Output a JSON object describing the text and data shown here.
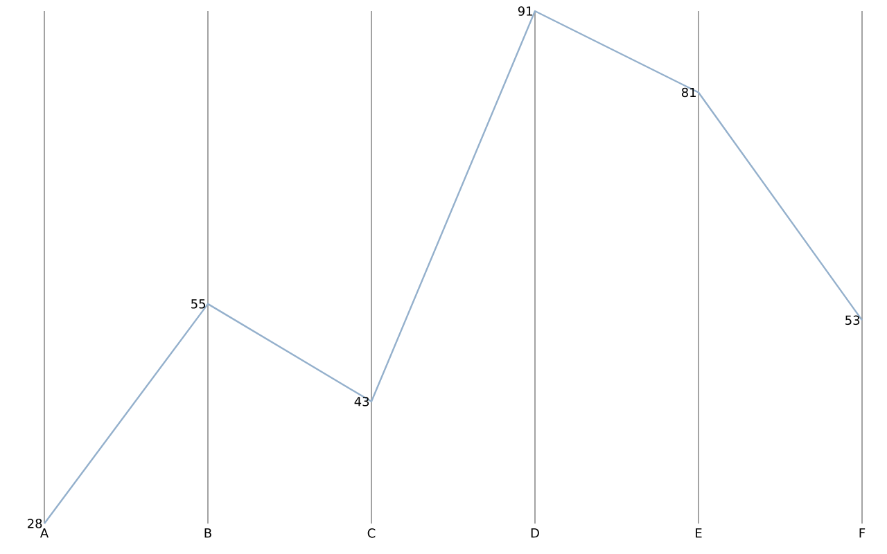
{
  "chart_data": {
    "type": "line",
    "categories": [
      "A",
      "B",
      "C",
      "D",
      "E",
      "F"
    ],
    "values": [
      28,
      55,
      43,
      91,
      81,
      53
    ],
    "color": "#94b0cc",
    "grid": "x",
    "data_labels": true,
    "marker": "none"
  }
}
